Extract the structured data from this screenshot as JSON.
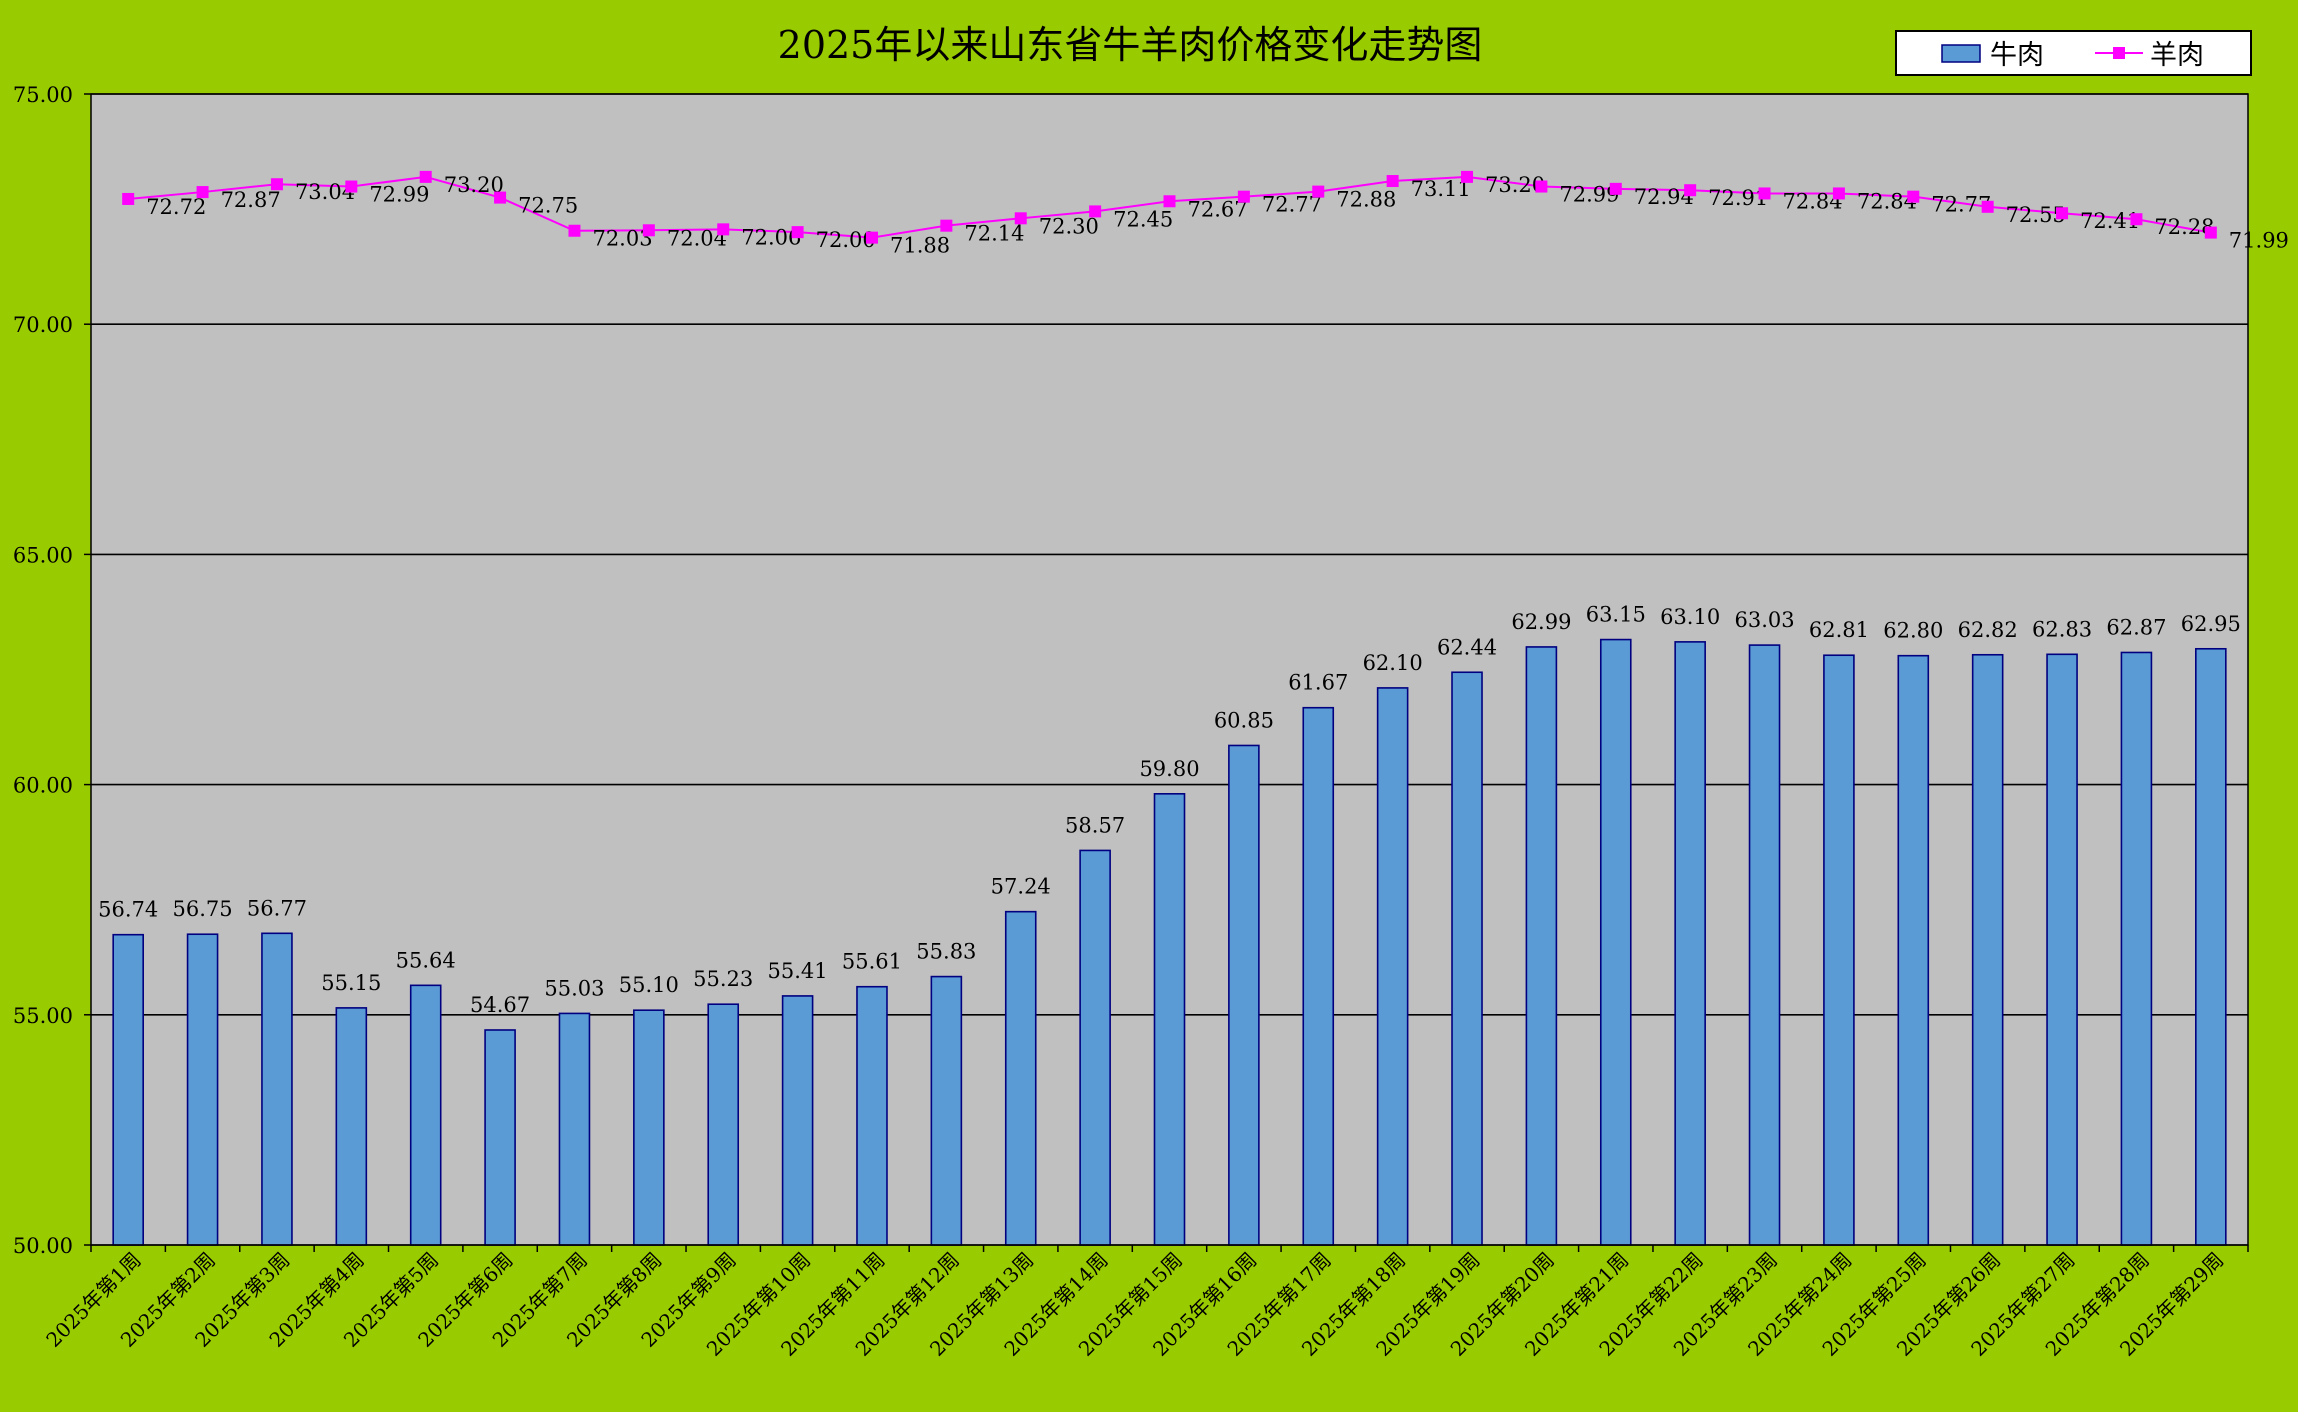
{
  "chart_data": {
    "type": "bar",
    "title": "2025年以来山东省牛羊肉价格变化走势图",
    "xlabel": "",
    "ylabel": "",
    "ylim": [
      50,
      75
    ],
    "yticks": [
      "50.00",
      "55.00",
      "60.00",
      "65.00",
      "70.00",
      "75.00"
    ],
    "grid": true,
    "legend_position": "top-right",
    "categories": [
      "2025年第1周",
      "2025年第2周",
      "2025年第3周",
      "2025年第4周",
      "2025年第5周",
      "2025年第6周",
      "2025年第7周",
      "2025年第8周",
      "2025年第9周",
      "2025年第10周",
      "2025年第11周",
      "2025年第12周",
      "2025年第13周",
      "2025年第14周",
      "2025年第15周",
      "2025年第16周",
      "2025年第17周",
      "2025年第18周",
      "2025年第19周",
      "2025年第20周",
      "2025年第21周",
      "2025年第22周",
      "2025年第23周",
      "2025年第24周",
      "2025年第25周",
      "2025年第26周",
      "2025年第27周",
      "2025年第28周",
      "2025年第29周"
    ],
    "series": [
      {
        "name": "牛肉",
        "type": "bar",
        "color": "#5b9bd5",
        "values": [
          56.74,
          56.75,
          56.77,
          55.15,
          55.64,
          54.67,
          55.03,
          55.1,
          55.23,
          55.41,
          55.61,
          55.83,
          57.24,
          58.57,
          59.8,
          60.85,
          61.67,
          62.1,
          62.44,
          62.99,
          63.15,
          63.1,
          63.03,
          62.81,
          62.8,
          62.82,
          62.83,
          62.87,
          62.95
        ],
        "labels": [
          "56.74",
          "56.75",
          "56.77",
          "55.15",
          "55.64",
          "54.67",
          "55.03",
          "55.10",
          "55.23",
          "55.41",
          "55.61",
          "55.83",
          "57.24",
          "58.57",
          "59.80",
          "60.85",
          "61.67",
          "62.10",
          "62.44",
          "62.99",
          "63.15",
          "63.10",
          "63.03",
          "62.81",
          "62.80",
          "62.82",
          "62.83",
          "62.87",
          "62.95"
        ]
      },
      {
        "name": "羊肉",
        "type": "line",
        "color": "#ff00ff",
        "values": [
          72.72,
          72.87,
          73.04,
          72.99,
          73.2,
          72.75,
          72.03,
          72.04,
          72.06,
          72.0,
          71.88,
          72.14,
          72.3,
          72.45,
          72.67,
          72.77,
          72.88,
          73.11,
          73.2,
          72.99,
          72.94,
          72.91,
          72.84,
          72.84,
          72.77,
          72.55,
          72.41,
          72.28,
          71.99
        ],
        "labels": [
          "72.72",
          "72.87",
          "73.04",
          "72.99",
          "73.20",
          "72.75",
          "72.03",
          "72.04",
          "72.06",
          "72.00",
          "71.88",
          "72.14",
          "72.30",
          "72.45",
          "72.67",
          "72.77",
          "72.88",
          "73.11",
          "73.20",
          "72.99",
          "72.94",
          "72.91",
          "72.84",
          "72.84",
          "72.77",
          "72.55",
          "72.41",
          "72.28",
          "71.99"
        ]
      }
    ]
  }
}
